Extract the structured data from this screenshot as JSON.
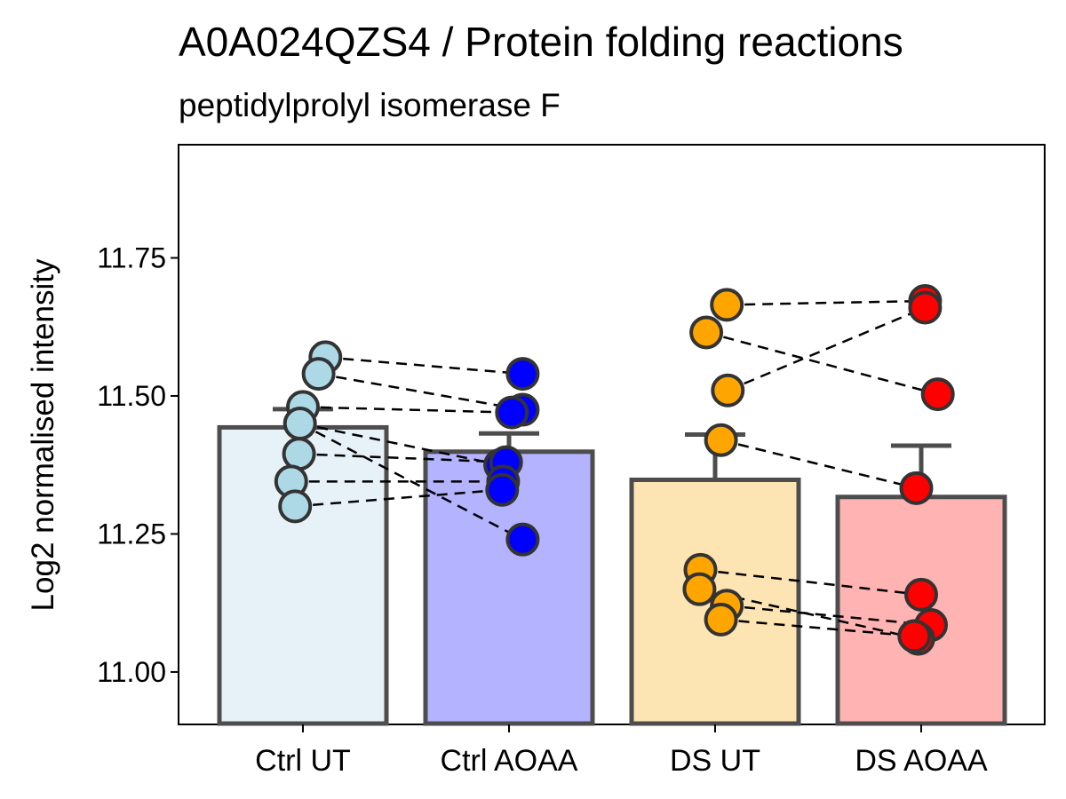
{
  "chart_data": {
    "type": "bar",
    "title": "A0A024QZS4 / Protein folding reactions",
    "subtitle": "peptidylprolyl isomerase F",
    "xlabel": "",
    "ylabel": "Log2 normalised intensity",
    "ylim": [
      10.905,
      11.955
    ],
    "yticks": [
      11.0,
      11.25,
      11.5,
      11.75
    ],
    "ytick_labels": [
      "11.00",
      "11.25",
      "11.50",
      "11.75"
    ],
    "grid": false,
    "legend": "none",
    "categories": [
      "Ctrl UT",
      "Ctrl AOAA",
      "DS UT",
      "DS AOAA"
    ],
    "values": [
      11.443,
      11.399,
      11.348,
      11.317
    ],
    "error_upper": [
      11.476,
      11.432,
      11.43,
      11.41
    ],
    "bar_colors": [
      "#e7f2f8",
      "#b3b3ff",
      "#fde4b3",
      "#ffb3b3"
    ],
    "point_colors": [
      "#add8e6",
      "#0000ff",
      "#ffa500",
      "#ff0000"
    ],
    "bar_outline_color": "#4d4d4d",
    "points": [
      [
        {
          "x": 0.23,
          "y": 11.57
        },
        {
          "x": 0.16,
          "y": 11.54
        },
        {
          "x": 0.0,
          "y": 11.48
        },
        {
          "x": -0.03,
          "y": 11.45
        },
        {
          "x": -0.04,
          "y": 11.395
        },
        {
          "x": -0.12,
          "y": 11.345
        },
        {
          "x": -0.08,
          "y": 11.3
        }
      ],
      [
        {
          "x": 0.14,
          "y": 11.54
        },
        {
          "x": 0.14,
          "y": 11.475
        },
        {
          "x": 0.03,
          "y": 11.47
        },
        {
          "x": -0.09,
          "y": 11.375
        },
        {
          "x": -0.03,
          "y": 11.38
        },
        {
          "x": -0.06,
          "y": 11.345
        },
        {
          "x": -0.07,
          "y": 11.33
        },
        {
          "x": 0.14,
          "y": 11.24
        }
      ],
      [
        {
          "x": 0.12,
          "y": 11.665
        },
        {
          "x": -0.09,
          "y": 11.615
        },
        {
          "x": 0.13,
          "y": 11.51
        },
        {
          "x": 0.06,
          "y": 11.42
        },
        {
          "x": -0.15,
          "y": 11.185
        },
        {
          "x": -0.16,
          "y": 11.15
        },
        {
          "x": 0.12,
          "y": 11.12
        },
        {
          "x": 0.06,
          "y": 11.095
        }
      ],
      [
        {
          "x": 0.04,
          "y": 11.672
        },
        {
          "x": 0.04,
          "y": 11.66
        },
        {
          "x": 0.17,
          "y": 11.503
        },
        {
          "x": -0.05,
          "y": 11.333
        },
        {
          "x": 0.0,
          "y": 11.14
        },
        {
          "x": 0.1,
          "y": 11.085
        },
        {
          "x": -0.03,
          "y": 11.06
        },
        {
          "x": -0.07,
          "y": 11.065
        }
      ]
    ],
    "pairs": [
      {
        "from": [
          0,
          0
        ],
        "to": [
          1,
          0
        ]
      },
      {
        "from": [
          0,
          1
        ],
        "to": [
          1,
          1
        ]
      },
      {
        "from": [
          0,
          2
        ],
        "to": [
          1,
          2
        ]
      },
      {
        "from": [
          0,
          3
        ],
        "to": [
          1,
          3
        ]
      },
      {
        "from": [
          0,
          4
        ],
        "to": [
          1,
          4
        ]
      },
      {
        "from": [
          0,
          5
        ],
        "to": [
          1,
          5
        ]
      },
      {
        "from": [
          0,
          6
        ],
        "to": [
          1,
          6
        ]
      },
      {
        "from": [
          0,
          3
        ],
        "to": [
          1,
          7
        ]
      },
      {
        "from": [
          2,
          0
        ],
        "to": [
          3,
          0
        ]
      },
      {
        "from": [
          2,
          2
        ],
        "to": [
          3,
          1
        ]
      },
      {
        "from": [
          2,
          1
        ],
        "to": [
          3,
          2
        ]
      },
      {
        "from": [
          2,
          3
        ],
        "to": [
          3,
          3
        ]
      },
      {
        "from": [
          2,
          4
        ],
        "to": [
          3,
          4
        ]
      },
      {
        "from": [
          2,
          6
        ],
        "to": [
          3,
          5
        ]
      },
      {
        "from": [
          2,
          5
        ],
        "to": [
          3,
          6
        ]
      },
      {
        "from": [
          2,
          7
        ],
        "to": [
          3,
          7
        ]
      }
    ]
  }
}
